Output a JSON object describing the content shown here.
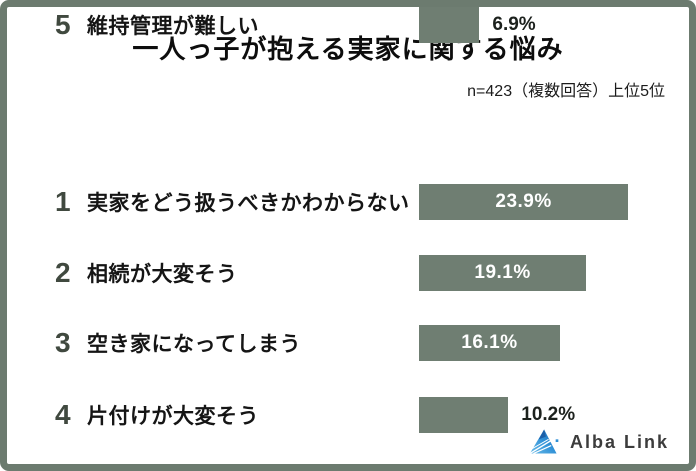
{
  "header": {
    "title": "一人っ子が抱える実家に関する悩み",
    "note": "n=423（複数回答）上位5位"
  },
  "chart_data": {
    "type": "bar",
    "orientation": "horizontal",
    "title": "一人っ子が抱える実家に関する悩み",
    "subtitle": "n=423（複数回答）上位5位",
    "sample_size": 423,
    "categories": [
      "実家をどう扱うべきかわからない",
      "相続が大変そう",
      "空き家になってしまう",
      "片付けが大変そう",
      "維持管理が難しい"
    ],
    "values": [
      23.9,
      19.1,
      16.1,
      10.2,
      6.9
    ],
    "value_labels": [
      "23.9%",
      "19.1%",
      "16.1%",
      "10.2%",
      "6.9%"
    ],
    "xlim": [
      0,
      24
    ],
    "grid": false,
    "legend": false,
    "rows": [
      {
        "rank": "1",
        "label": "実家をどう扱うべきかわからない",
        "value": 23.9,
        "value_label": "23.9%",
        "value_label_position": "inside"
      },
      {
        "rank": "2",
        "label": "相続が大変そう",
        "value": 19.1,
        "value_label": "19.1%",
        "value_label_position": "inside"
      },
      {
        "rank": "3",
        "label": "空き家になってしまう",
        "value": 16.1,
        "value_label": "16.1%",
        "value_label_position": "inside"
      },
      {
        "rank": "4",
        "label": "片付けが大変そう",
        "value": 10.2,
        "value_label": "10.2%",
        "value_label_position": "outside"
      },
      {
        "rank": "5",
        "label": "維持管理が難しい",
        "value": 6.9,
        "value_label": "6.9%",
        "value_label_position": "outside"
      }
    ]
  },
  "footer": {
    "brand": "Alba Link",
    "logo_icon": "albalink-triangle-logo"
  },
  "colors": {
    "frame-border": "#6c7b6f",
    "bar-color": "#6f7e72",
    "rank-color": "#40493f",
    "title-color": "#0d0d0d",
    "subtitle-color": "#1c1c1c",
    "pct-inside-color": "#ffffff",
    "pct-outside-color": "#1c211d",
    "brand-text-color": "#3c3c3c",
    "logo-blue-dark": "#1b5fa8",
    "logo-blue-mid": "#2e8fd6",
    "logo-blue-light": "#6bbce8"
  }
}
